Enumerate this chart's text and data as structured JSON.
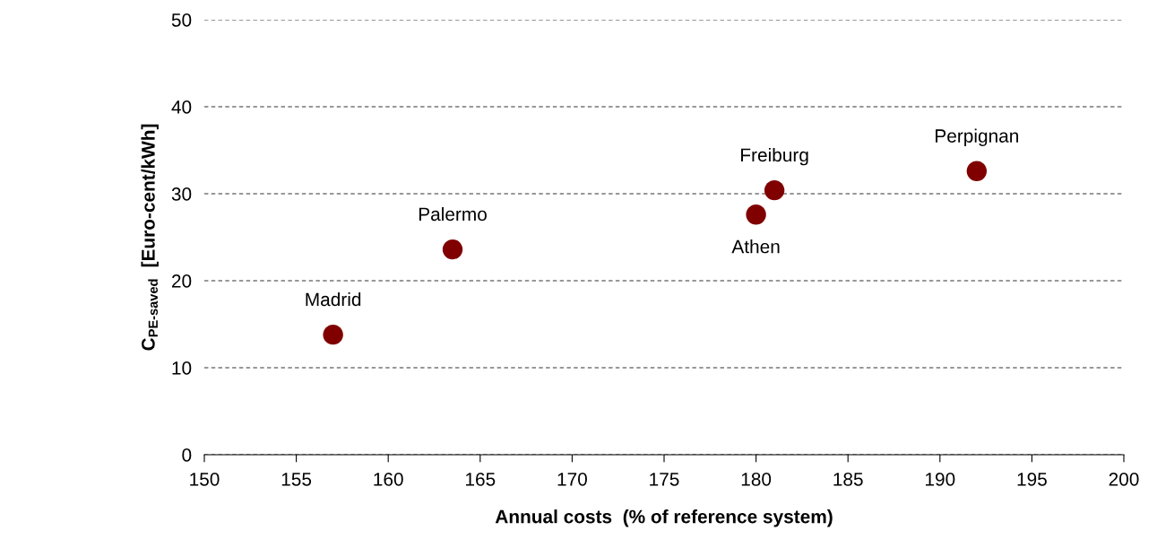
{
  "chart_data": {
    "type": "scatter",
    "xlabel": "Annual costs  (% of reference system)",
    "ylabel": "C$_{PE-saved}$  [Euro-cent/kWh]",
    "series": [
      {
        "color": "#800000",
        "x": [
          157,
          163.5,
          180,
          181,
          192
        ],
        "values": [
          13.8,
          23.6,
          27.6,
          30.4,
          32.6
        ]
      }
    ],
    "annotations": [
      {
        "text": "Madrid",
        "x": 157,
        "y": 13.8
      },
      {
        "text": "Palermo",
        "x": 163.5,
        "y": 23.6
      },
      {
        "text": "Athen",
        "x": 180,
        "y": 27.6
      },
      {
        "text": "Freiburg",
        "x": 181,
        "y": 30.4
      },
      {
        "text": "Perpignan",
        "x": 192,
        "y": 32.6
      }
    ],
    "xlim": [
      150,
      200
    ],
    "xticks": [
      150,
      155,
      160,
      165,
      170,
      175,
      180,
      185,
      190,
      195,
      200
    ],
    "ylim": [
      0,
      50
    ],
    "yticks": [
      0,
      10,
      20,
      30,
      40,
      50
    ],
    "grid": "y",
    "marker": "circle"
  }
}
